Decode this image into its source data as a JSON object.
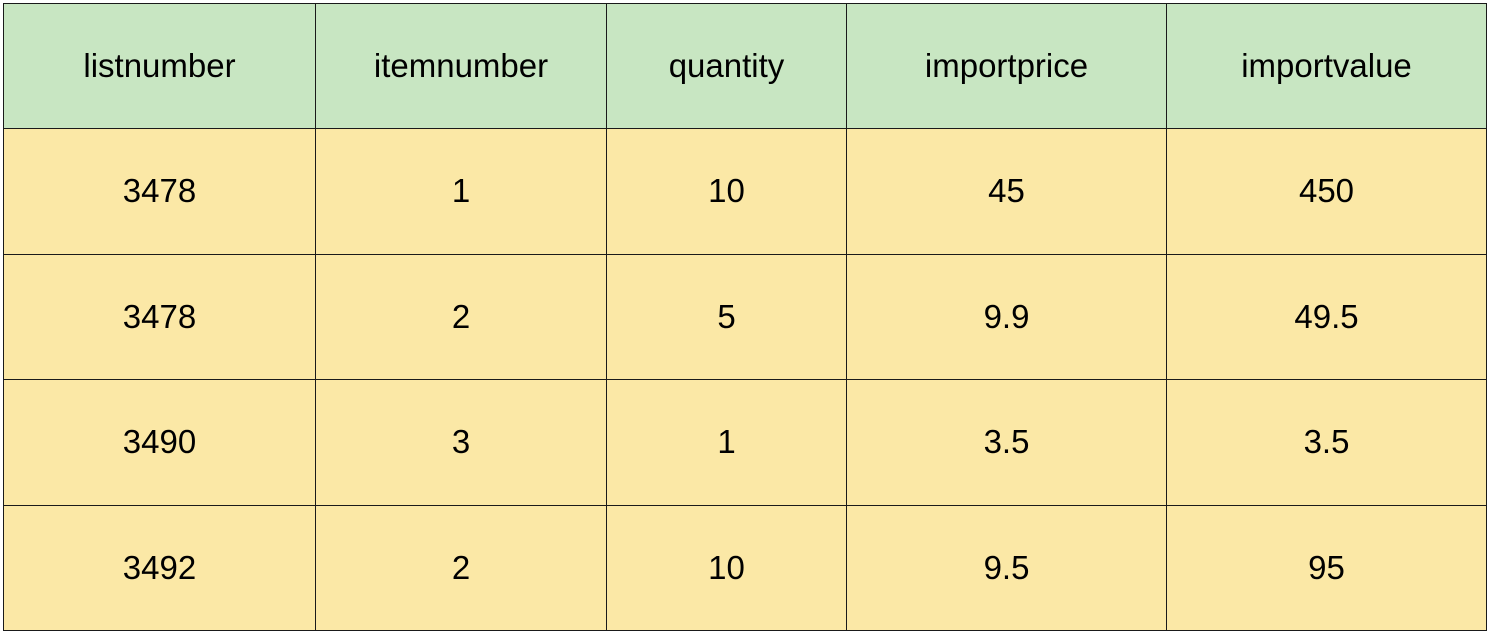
{
  "colors": {
    "header_bg": "#c8e6c2",
    "body_bg": "#fbe8a6",
    "border": "#1a1a1a",
    "text": "#000000"
  },
  "table": {
    "columns": [
      "listnumber",
      "itemnumber",
      "quantity",
      "importprice",
      "importvalue"
    ],
    "rows": [
      [
        "3478",
        "1",
        "10",
        "45",
        "450"
      ],
      [
        "3478",
        "2",
        "5",
        "9.9",
        "49.5"
      ],
      [
        "3490",
        "3",
        "1",
        "3.5",
        "3.5"
      ],
      [
        "3492",
        "2",
        "10",
        "9.5",
        "95"
      ]
    ]
  }
}
